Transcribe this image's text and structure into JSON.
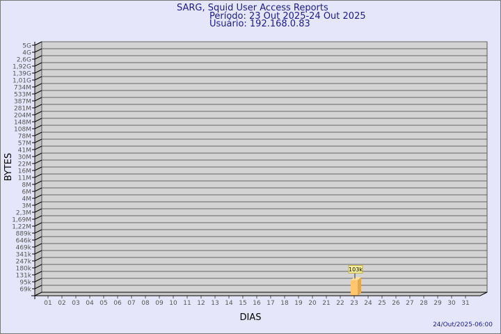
{
  "header": {
    "title": "SARG, Squid User Access Reports",
    "period": "Período: 23 Out 2025-24 Out 2025",
    "user": "Usuário: 192.168.0.83"
  },
  "footer": {
    "timestamp": "24/Out/2025-06:00"
  },
  "colors": {
    "background": "#e6e6fa",
    "plot": "#d3d3d3",
    "bar": "#ffc66e",
    "title": "#1a1a8c"
  },
  "chart_data": {
    "type": "bar",
    "xlabel": "DIAS",
    "ylabel": "BYTES",
    "y_scale": "log",
    "grid": true,
    "y_ticks": [
      "69k",
      "95k",
      "131k",
      "180k",
      "247k",
      "341k",
      "469k",
      "646k",
      "889k",
      "1,22M",
      "1,69M",
      "2,3M",
      "3M",
      "4M",
      "6M",
      "8M",
      "11M",
      "16M",
      "22M",
      "30M",
      "41M",
      "57M",
      "78M",
      "108M",
      "148M",
      "204M",
      "281M",
      "387M",
      "533M",
      "734M",
      "1,01G",
      "1,39G",
      "1,92G",
      "2,6G",
      "4G",
      "5G"
    ],
    "categories": [
      "01",
      "02",
      "03",
      "04",
      "05",
      "06",
      "07",
      "08",
      "09",
      "10",
      "11",
      "12",
      "13",
      "14",
      "15",
      "16",
      "17",
      "18",
      "19",
      "20",
      "21",
      "22",
      "23",
      "24",
      "25",
      "26",
      "27",
      "28",
      "29",
      "30",
      "31"
    ],
    "values": [
      null,
      null,
      null,
      null,
      null,
      null,
      null,
      null,
      null,
      null,
      null,
      null,
      null,
      null,
      null,
      null,
      null,
      null,
      null,
      null,
      null,
      null,
      103000,
      null,
      null,
      null,
      null,
      null,
      null,
      null,
      null
    ],
    "data_labels": {
      "23": "103k"
    }
  }
}
